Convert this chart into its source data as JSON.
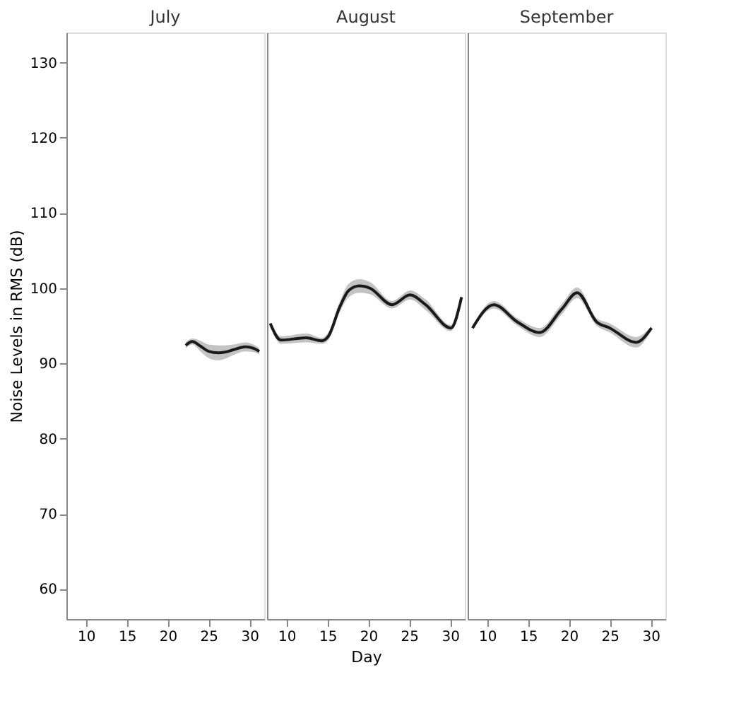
{
  "chart_data": [
    {
      "type": "line",
      "title": "July",
      "ylabel": "Noise Levels in RMS (dB)",
      "xlim": [
        7.6,
        31.8
      ],
      "xticks": [
        10,
        15,
        20,
        25,
        30
      ],
      "ylim": [
        56,
        134
      ],
      "yticks": [
        60,
        70,
        80,
        90,
        100,
        110,
        120,
        130
      ],
      "series": [
        {
          "color": "#1a1a1a",
          "x": [
            22.2,
            23,
            24,
            25,
            26.2,
            27,
            28,
            29.5,
            30.5,
            31.2
          ],
          "values": [
            92.4,
            92.9,
            92.3,
            91.6,
            91.4,
            91.5,
            91.8,
            92.2,
            92.0,
            91.6
          ],
          "lower": [
            92.0,
            92.5,
            91.6,
            90.7,
            90.4,
            90.6,
            91.1,
            91.6,
            91.5,
            91.2
          ],
          "upper": [
            92.8,
            93.3,
            93.0,
            92.5,
            92.4,
            92.4,
            92.5,
            92.8,
            92.5,
            92.0
          ]
        }
      ]
    },
    {
      "type": "line",
      "title": "August",
      "xlabel": "Day",
      "xlim": [
        7.6,
        31.8
      ],
      "xticks": [
        10,
        15,
        20,
        25,
        30
      ],
      "ylim": [
        56,
        134
      ],
      "yticks": [
        60,
        70,
        80,
        90,
        100,
        110,
        120,
        130
      ],
      "tick_labels": "x",
      "series": [
        {
          "color": "#1a1a1a",
          "x": [
            8.0,
            9.3,
            12.4,
            14.3,
            15.1,
            16.5,
            17.6,
            18.9,
            20.2,
            22.9,
            25.1,
            27.0,
            30.1,
            31.4
          ],
          "values": [
            95.3,
            93.1,
            93.4,
            93.0,
            93.6,
            97.5,
            99.7,
            100.3,
            100.0,
            97.8,
            99.1,
            97.8,
            94.7,
            98.8
          ],
          "lower": [
            95.1,
            92.6,
            92.8,
            92.6,
            93.1,
            96.8,
            98.8,
            99.4,
            99.2,
            97.3,
            98.5,
            97.1,
            94.3,
            98.6
          ],
          "upper": [
            95.5,
            93.6,
            94.0,
            93.4,
            94.1,
            98.2,
            100.6,
            101.2,
            100.8,
            98.3,
            99.7,
            98.5,
            95.1,
            99.0
          ]
        }
      ]
    },
    {
      "type": "line",
      "xlim": [
        7.6,
        31.8
      ],
      "xticks": [
        10,
        15,
        20,
        25,
        30
      ],
      "ylim": [
        56,
        134
      ],
      "yticks": [
        60,
        70,
        80,
        90,
        100,
        110,
        120,
        130
      ],
      "tick_labels": "x",
      "title": "September",
      "series": [
        {
          "color": "#1a1a1a",
          "x": [
            8.2,
            10.8,
            13.7,
            16.4,
            19.1,
            21.0,
            23.4,
            25.0,
            28.2,
            30.1
          ],
          "values": [
            94.7,
            97.8,
            95.5,
            94.1,
            97.2,
            99.4,
            95.5,
            94.7,
            92.8,
            94.7
          ],
          "lower": [
            94.5,
            97.3,
            95.0,
            93.5,
            96.5,
            98.7,
            95.0,
            94.1,
            92.1,
            94.4
          ],
          "upper": [
            94.9,
            98.3,
            96.0,
            94.7,
            97.9,
            100.1,
            96.0,
            95.3,
            93.5,
            95.0
          ]
        }
      ]
    }
  ]
}
